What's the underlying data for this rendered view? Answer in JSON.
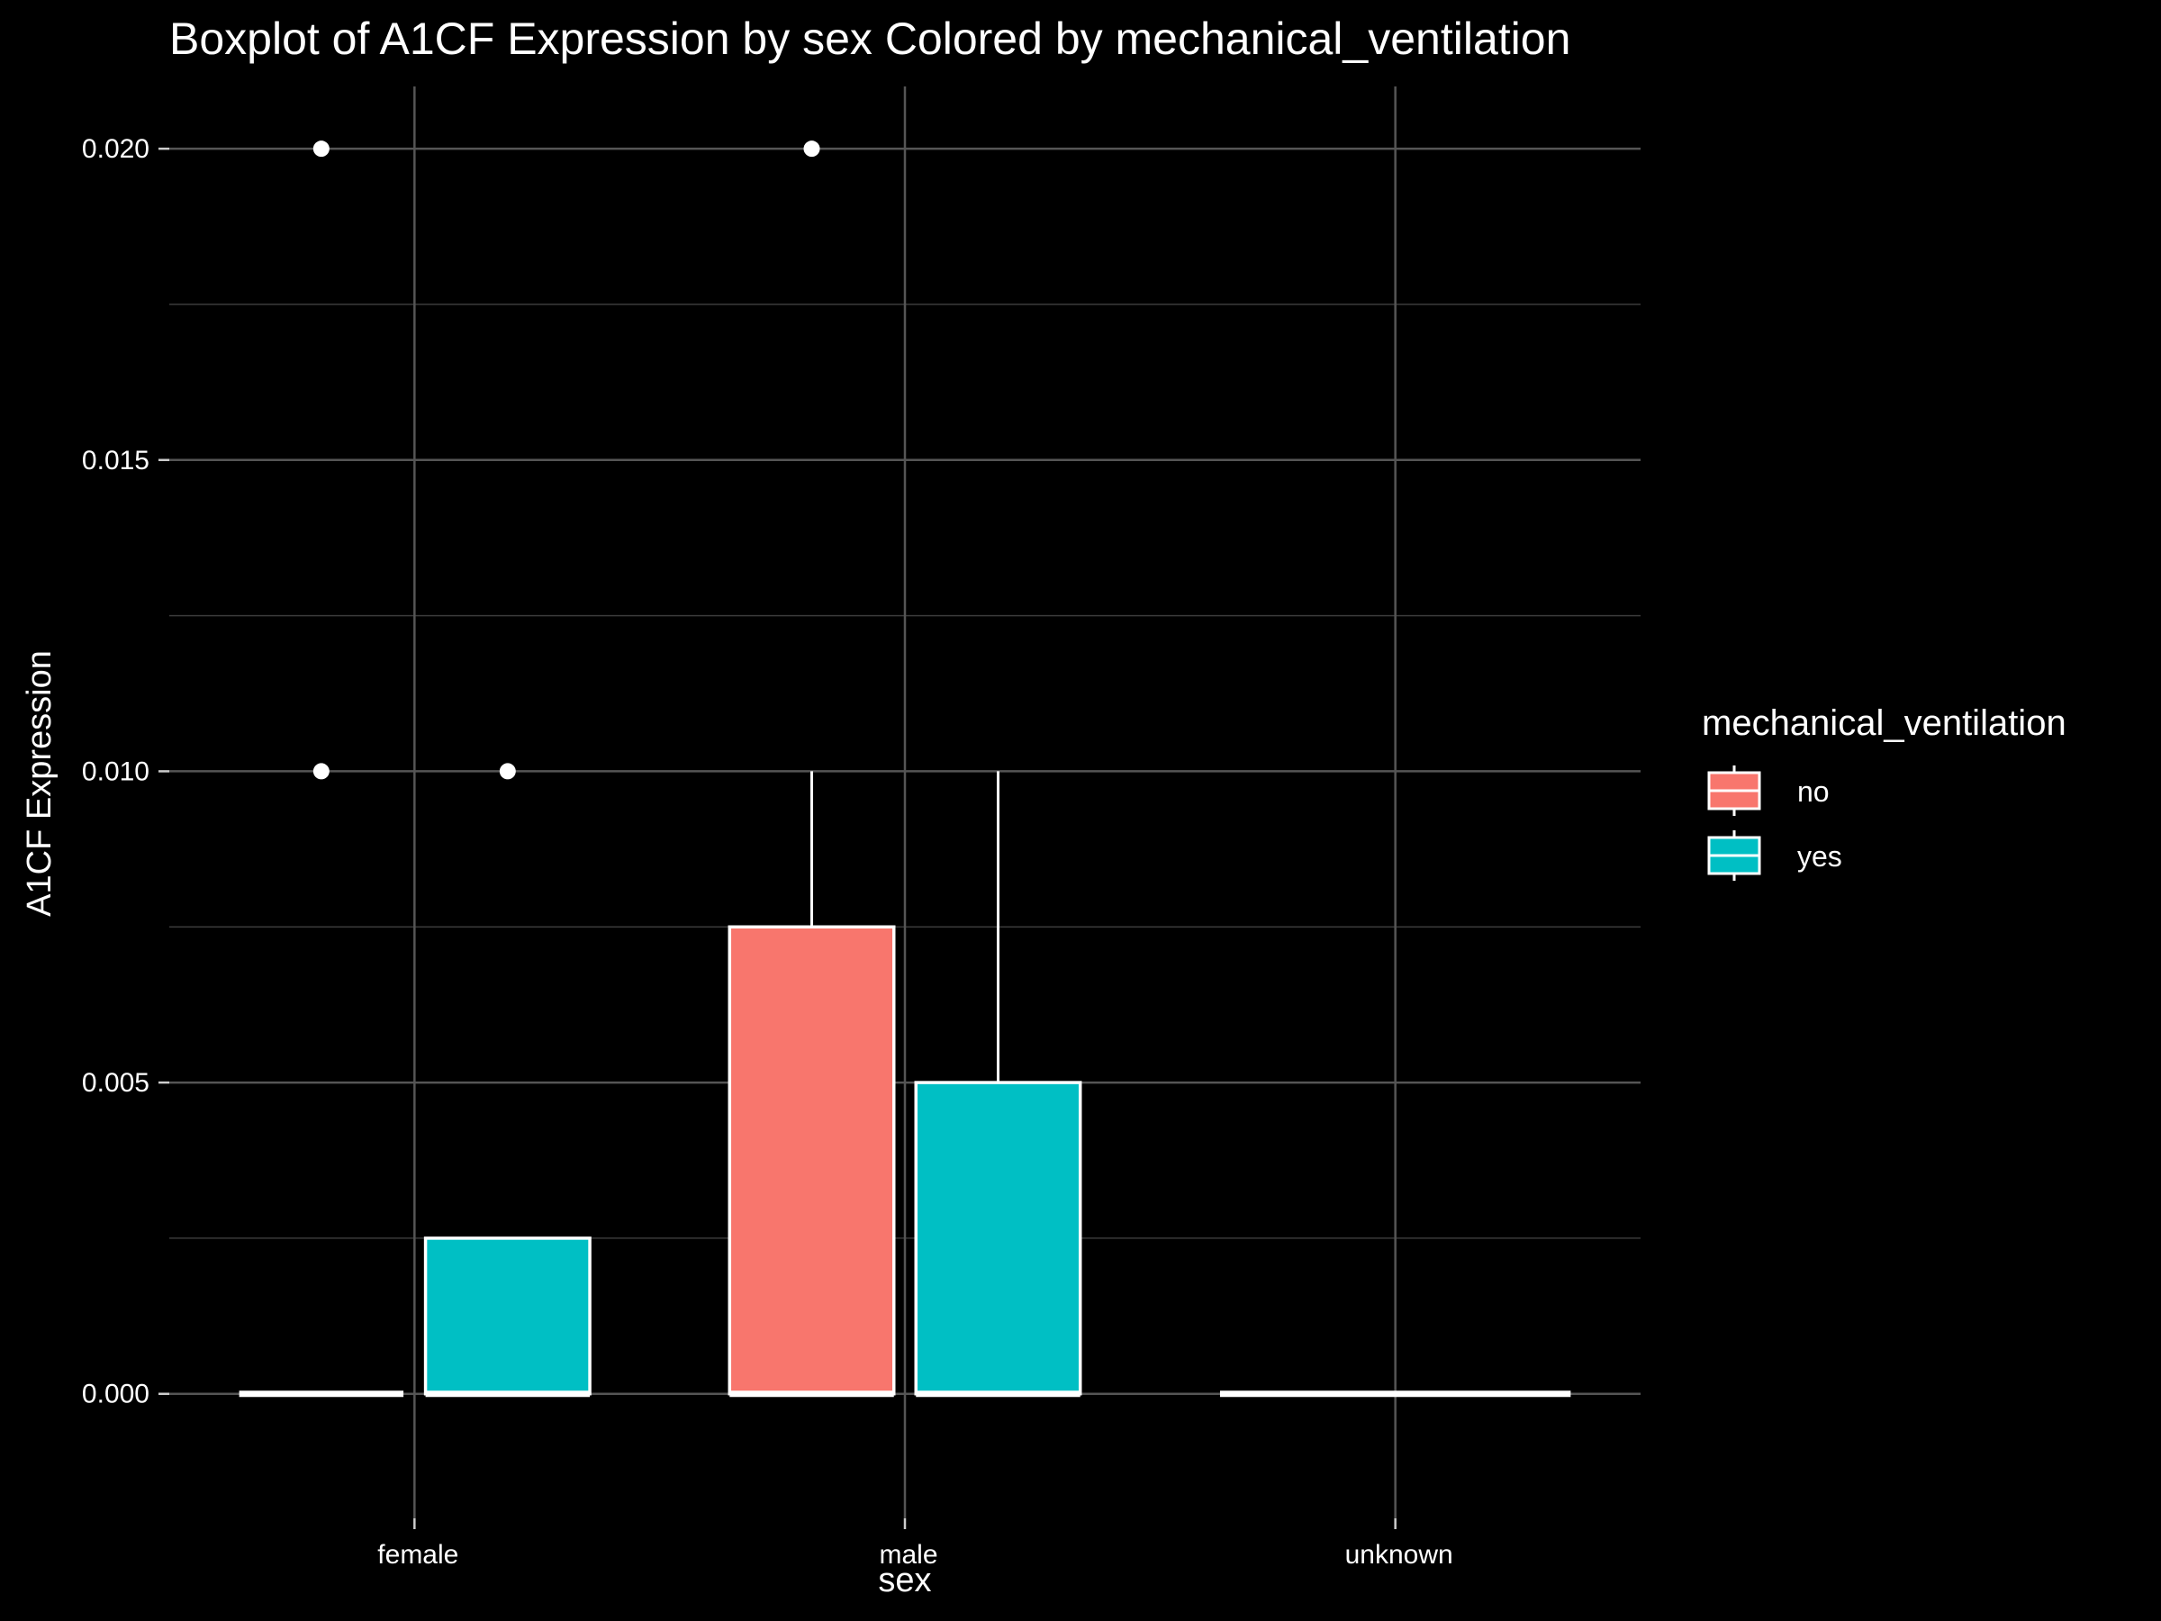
{
  "chart_data": {
    "type": "boxplot",
    "title": "Boxplot of A1CF Expression by sex Colored by mechanical_ventilation",
    "xlabel": "sex",
    "ylabel": "A1CF Expression",
    "categories": [
      "female",
      "male",
      "unknown"
    ],
    "ylim": [
      -0.002,
      0.021
    ],
    "yticks": [
      0.0,
      0.005,
      0.01,
      0.015,
      0.02
    ],
    "ytick_labels": [
      "0.000",
      "0.005",
      "0.010",
      "0.015",
      "0.020"
    ],
    "grid": true,
    "legend": {
      "title": "mechanical_ventilation",
      "placement": "right",
      "entries": [
        {
          "label": "no",
          "color": "#F8766D"
        },
        {
          "label": "yes",
          "color": "#00BFC4"
        }
      ]
    },
    "series": [
      {
        "name": "no",
        "color": "#F8766D",
        "boxes": [
          {
            "category": "female",
            "min": 0.0,
            "q1": 0.0,
            "median": 0.0,
            "q3": 0.0,
            "max": 0.0,
            "outliers": [
              0.01,
              0.02
            ]
          },
          {
            "category": "male",
            "min": 0.0,
            "q1": 0.0,
            "median": 0.0,
            "q3": 0.0075,
            "max": 0.01,
            "outliers": [
              0.02
            ]
          }
        ]
      },
      {
        "name": "yes",
        "color": "#00BFC4",
        "boxes": [
          {
            "category": "female",
            "min": 0.0,
            "q1": 0.0,
            "median": 0.0,
            "q3": 0.0025,
            "max": 0.0025,
            "outliers": [
              0.01
            ]
          },
          {
            "category": "male",
            "min": 0.0,
            "q1": 0.0,
            "median": 0.0,
            "q3": 0.005,
            "max": 0.01,
            "outliers": []
          }
        ]
      },
      {
        "name": "",
        "color": "#888888",
        "boxes": [
          {
            "category": "unknown",
            "min": 0.0,
            "q1": 0.0,
            "median": 0.0,
            "q3": 0.0,
            "max": 0.0,
            "outliers": [],
            "full_width": true
          }
        ]
      }
    ]
  }
}
